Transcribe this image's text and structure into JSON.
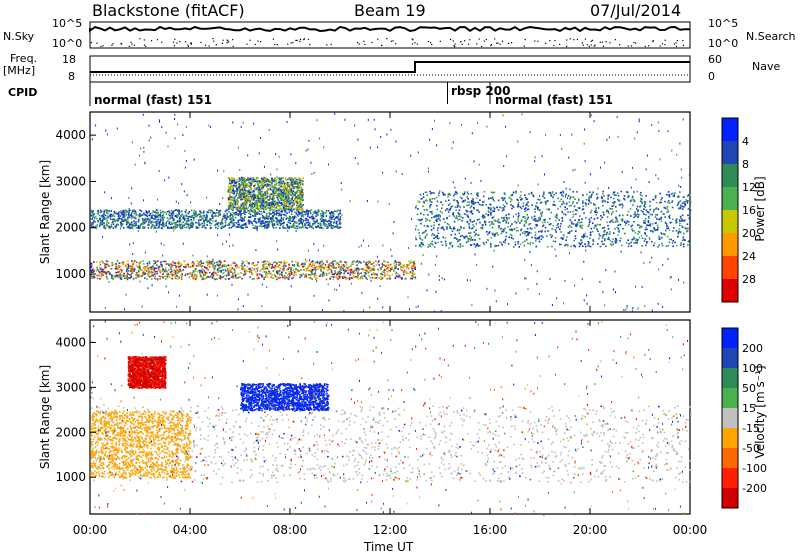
{
  "header": {
    "station": "Blackstone (fitACF)",
    "beam": "Beam 19",
    "date": "07/Jul/2014"
  },
  "summary_panels": {
    "nsky_label": "N.Sky",
    "nsearch_label": "N.Search",
    "freq_label_1": "Freq.",
    "freq_label_2": "[MHz]",
    "nave_label": "Nave",
    "cpid_label": "CPID",
    "noise_tick_top": "10^5",
    "noise_tick_bottom": "10^0",
    "freq_tick_top": "18",
    "freq_tick_bottom": "8",
    "nave_tick_top": "60",
    "nave_tick_bottom": "0",
    "cpid_segments": [
      {
        "label": "normal (fast) 151",
        "start_hr": 0,
        "end_hr": 14.3
      },
      {
        "label": "rbsp 200",
        "start_hr": 14.3,
        "end_hr": 16.0
      },
      {
        "label": "normal (fast) 151",
        "start_hr": 16.0,
        "end_hr": 24
      }
    ],
    "freq_step_hour": 13.0
  },
  "chart_data": [
    {
      "type": "heatmap",
      "title": "",
      "xlabel": "Time UT",
      "ylabel": "Slant Range [km]",
      "x_ticks": [
        "00:00",
        "04:00",
        "08:00",
        "12:00",
        "16:00",
        "20:00",
        "00:00"
      ],
      "y_ticks": [
        "1000",
        "2000",
        "3000",
        "4000"
      ],
      "xlim_hours": [
        0,
        24
      ],
      "ylim_km": [
        180,
        4500
      ],
      "colorbar": {
        "label": "Power [dB]",
        "ticks": [
          "4",
          "8",
          "12",
          "16",
          "20",
          "24",
          "28"
        ],
        "colors": [
          "#0022ff",
          "#1e46b4",
          "#2e8b57",
          "#4caf50",
          "#c8c800",
          "#ff9900",
          "#ff4500",
          "#e00000"
        ]
      },
      "features": [
        {
          "name": "low band",
          "hours": [
            0,
            13
          ],
          "km": [
            900,
            1300
          ],
          "peak_db": 28
        },
        {
          "name": "upper band",
          "hours": [
            0,
            10
          ],
          "km": [
            2000,
            2400
          ],
          "peak_db": 12
        },
        {
          "name": "cluster",
          "hours": [
            5.5,
            8.5
          ],
          "km": [
            2400,
            3100
          ],
          "peak_db": 20
        },
        {
          "name": "evening band",
          "hours": [
            13,
            24
          ],
          "km": [
            1600,
            2800
          ],
          "peak_db": 12
        }
      ]
    },
    {
      "type": "heatmap",
      "title": "",
      "xlabel": "Time UT",
      "ylabel": "Slant Range [km]",
      "x_ticks": [
        "00:00",
        "04:00",
        "08:00",
        "12:00",
        "16:00",
        "20:00",
        "00:00"
      ],
      "y_ticks": [
        "1000",
        "2000",
        "3000",
        "4000"
      ],
      "xlim_hours": [
        0,
        24
      ],
      "ylim_km": [
        180,
        4500
      ],
      "colorbar": {
        "label": "Velocity [m s⁻¹]",
        "ticks": [
          "200",
          "100",
          "50",
          "15",
          "-15",
          "-50",
          "-100",
          "-200"
        ],
        "colors": [
          "#0022ff",
          "#1e46b4",
          "#2e8b57",
          "#4caf50",
          "#c0c0c0",
          "#ffa500",
          "#ff6a00",
          "#ff2000",
          "#d00000"
        ]
      },
      "features": [
        {
          "name": "ground scatter band",
          "hours": [
            0,
            24
          ],
          "km": [
            900,
            2600
          ],
          "velocity_ms": 0
        },
        {
          "name": "blue cluster",
          "hours": [
            6,
            9.5
          ],
          "km": [
            2500,
            3100
          ],
          "velocity_ms": 200
        },
        {
          "name": "red cluster",
          "hours": [
            1.5,
            3
          ],
          "km": [
            3000,
            3700
          ],
          "velocity_ms": -200
        },
        {
          "name": "orange patches",
          "hours": [
            0,
            4
          ],
          "km": [
            1000,
            2500
          ],
          "velocity_ms": -50
        }
      ]
    }
  ]
}
